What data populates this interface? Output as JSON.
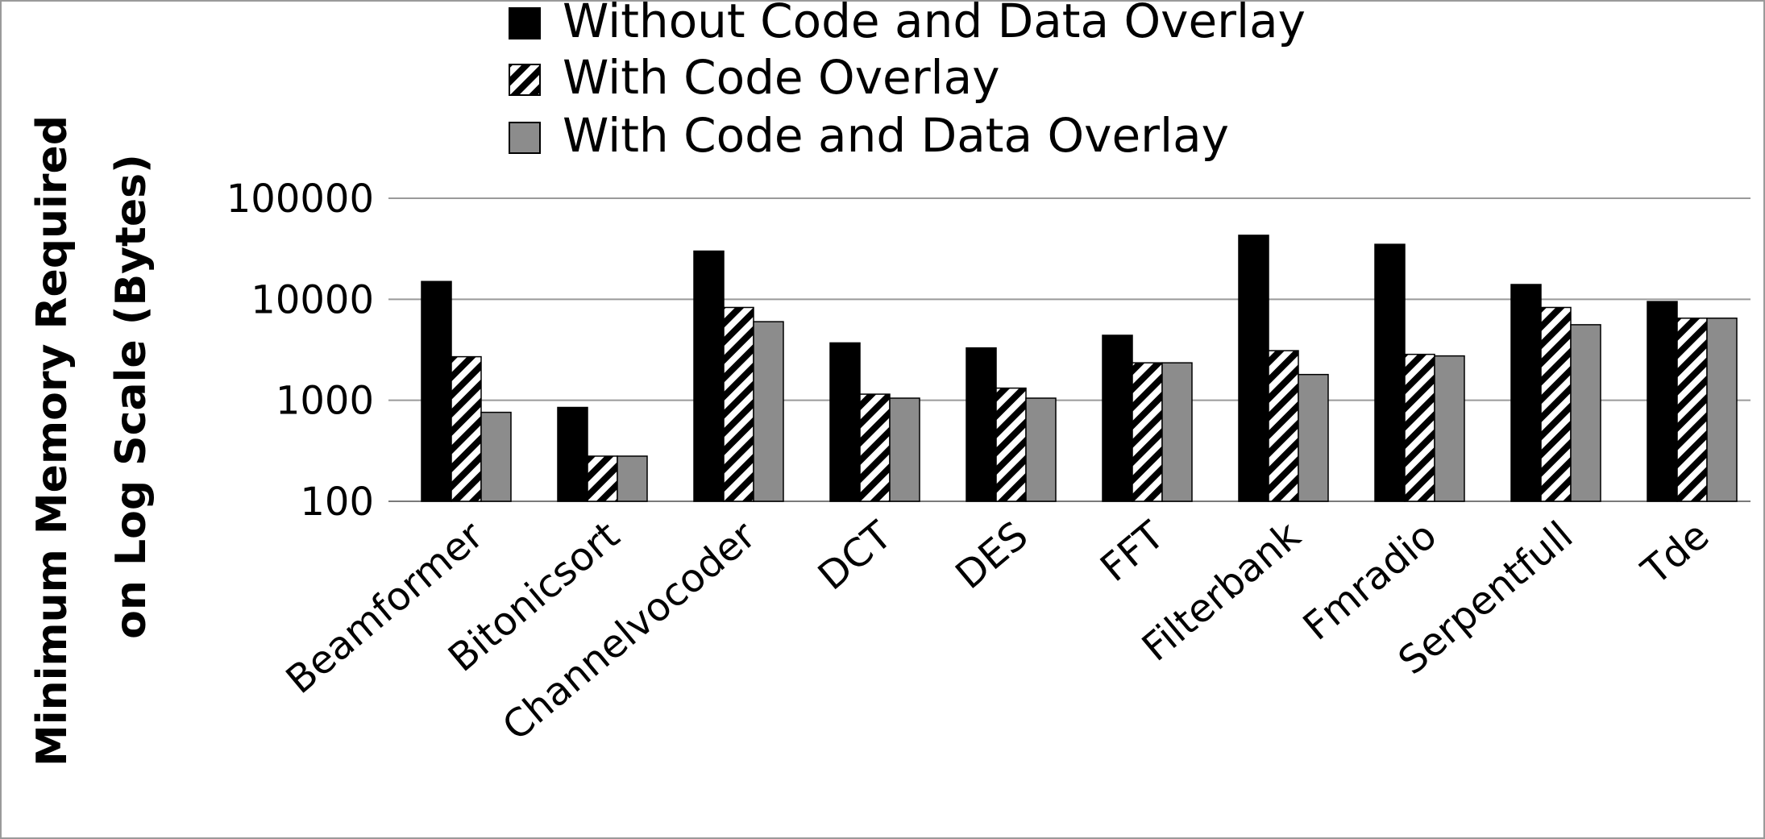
{
  "chart_data": {
    "type": "bar",
    "title": "",
    "ylabel_lines": [
      "Minimum Memory Required",
      "on Log Scale (Bytes)"
    ],
    "xlabel": "",
    "y_scale": "log",
    "ylim": [
      100,
      100000
    ],
    "y_ticks": [
      100,
      1000,
      10000,
      100000
    ],
    "y_tick_labels": [
      "100",
      "1000",
      "10000",
      "100000"
    ],
    "grid": true,
    "legend_position": "top",
    "categories": [
      "Beamformer",
      "Bitonicsort",
      "Channelvocoder",
      "DCT",
      "DES",
      "FFT",
      "Filterbank",
      "Fmradio",
      "Serpentfull",
      "Tde"
    ],
    "series": [
      {
        "name": "Without Code and Data Overlay",
        "fill": "#000000",
        "pattern": "solid",
        "values": [
          15000,
          850,
          30000,
          3700,
          3300,
          4400,
          43000,
          35000,
          14000,
          9500
        ]
      },
      {
        "name": "With Code Overlay",
        "fill": "#ffffff",
        "pattern": "diagonal-hatch",
        "values": [
          2700,
          280,
          8300,
          1150,
          1320,
          2350,
          3100,
          2850,
          8300,
          6500
        ]
      },
      {
        "name": "With Code and Data Overlay",
        "fill": "#8c8c8c",
        "pattern": "solid",
        "values": [
          760,
          280,
          6000,
          1050,
          1050,
          2350,
          1800,
          2750,
          5600,
          6500
        ]
      }
    ]
  }
}
